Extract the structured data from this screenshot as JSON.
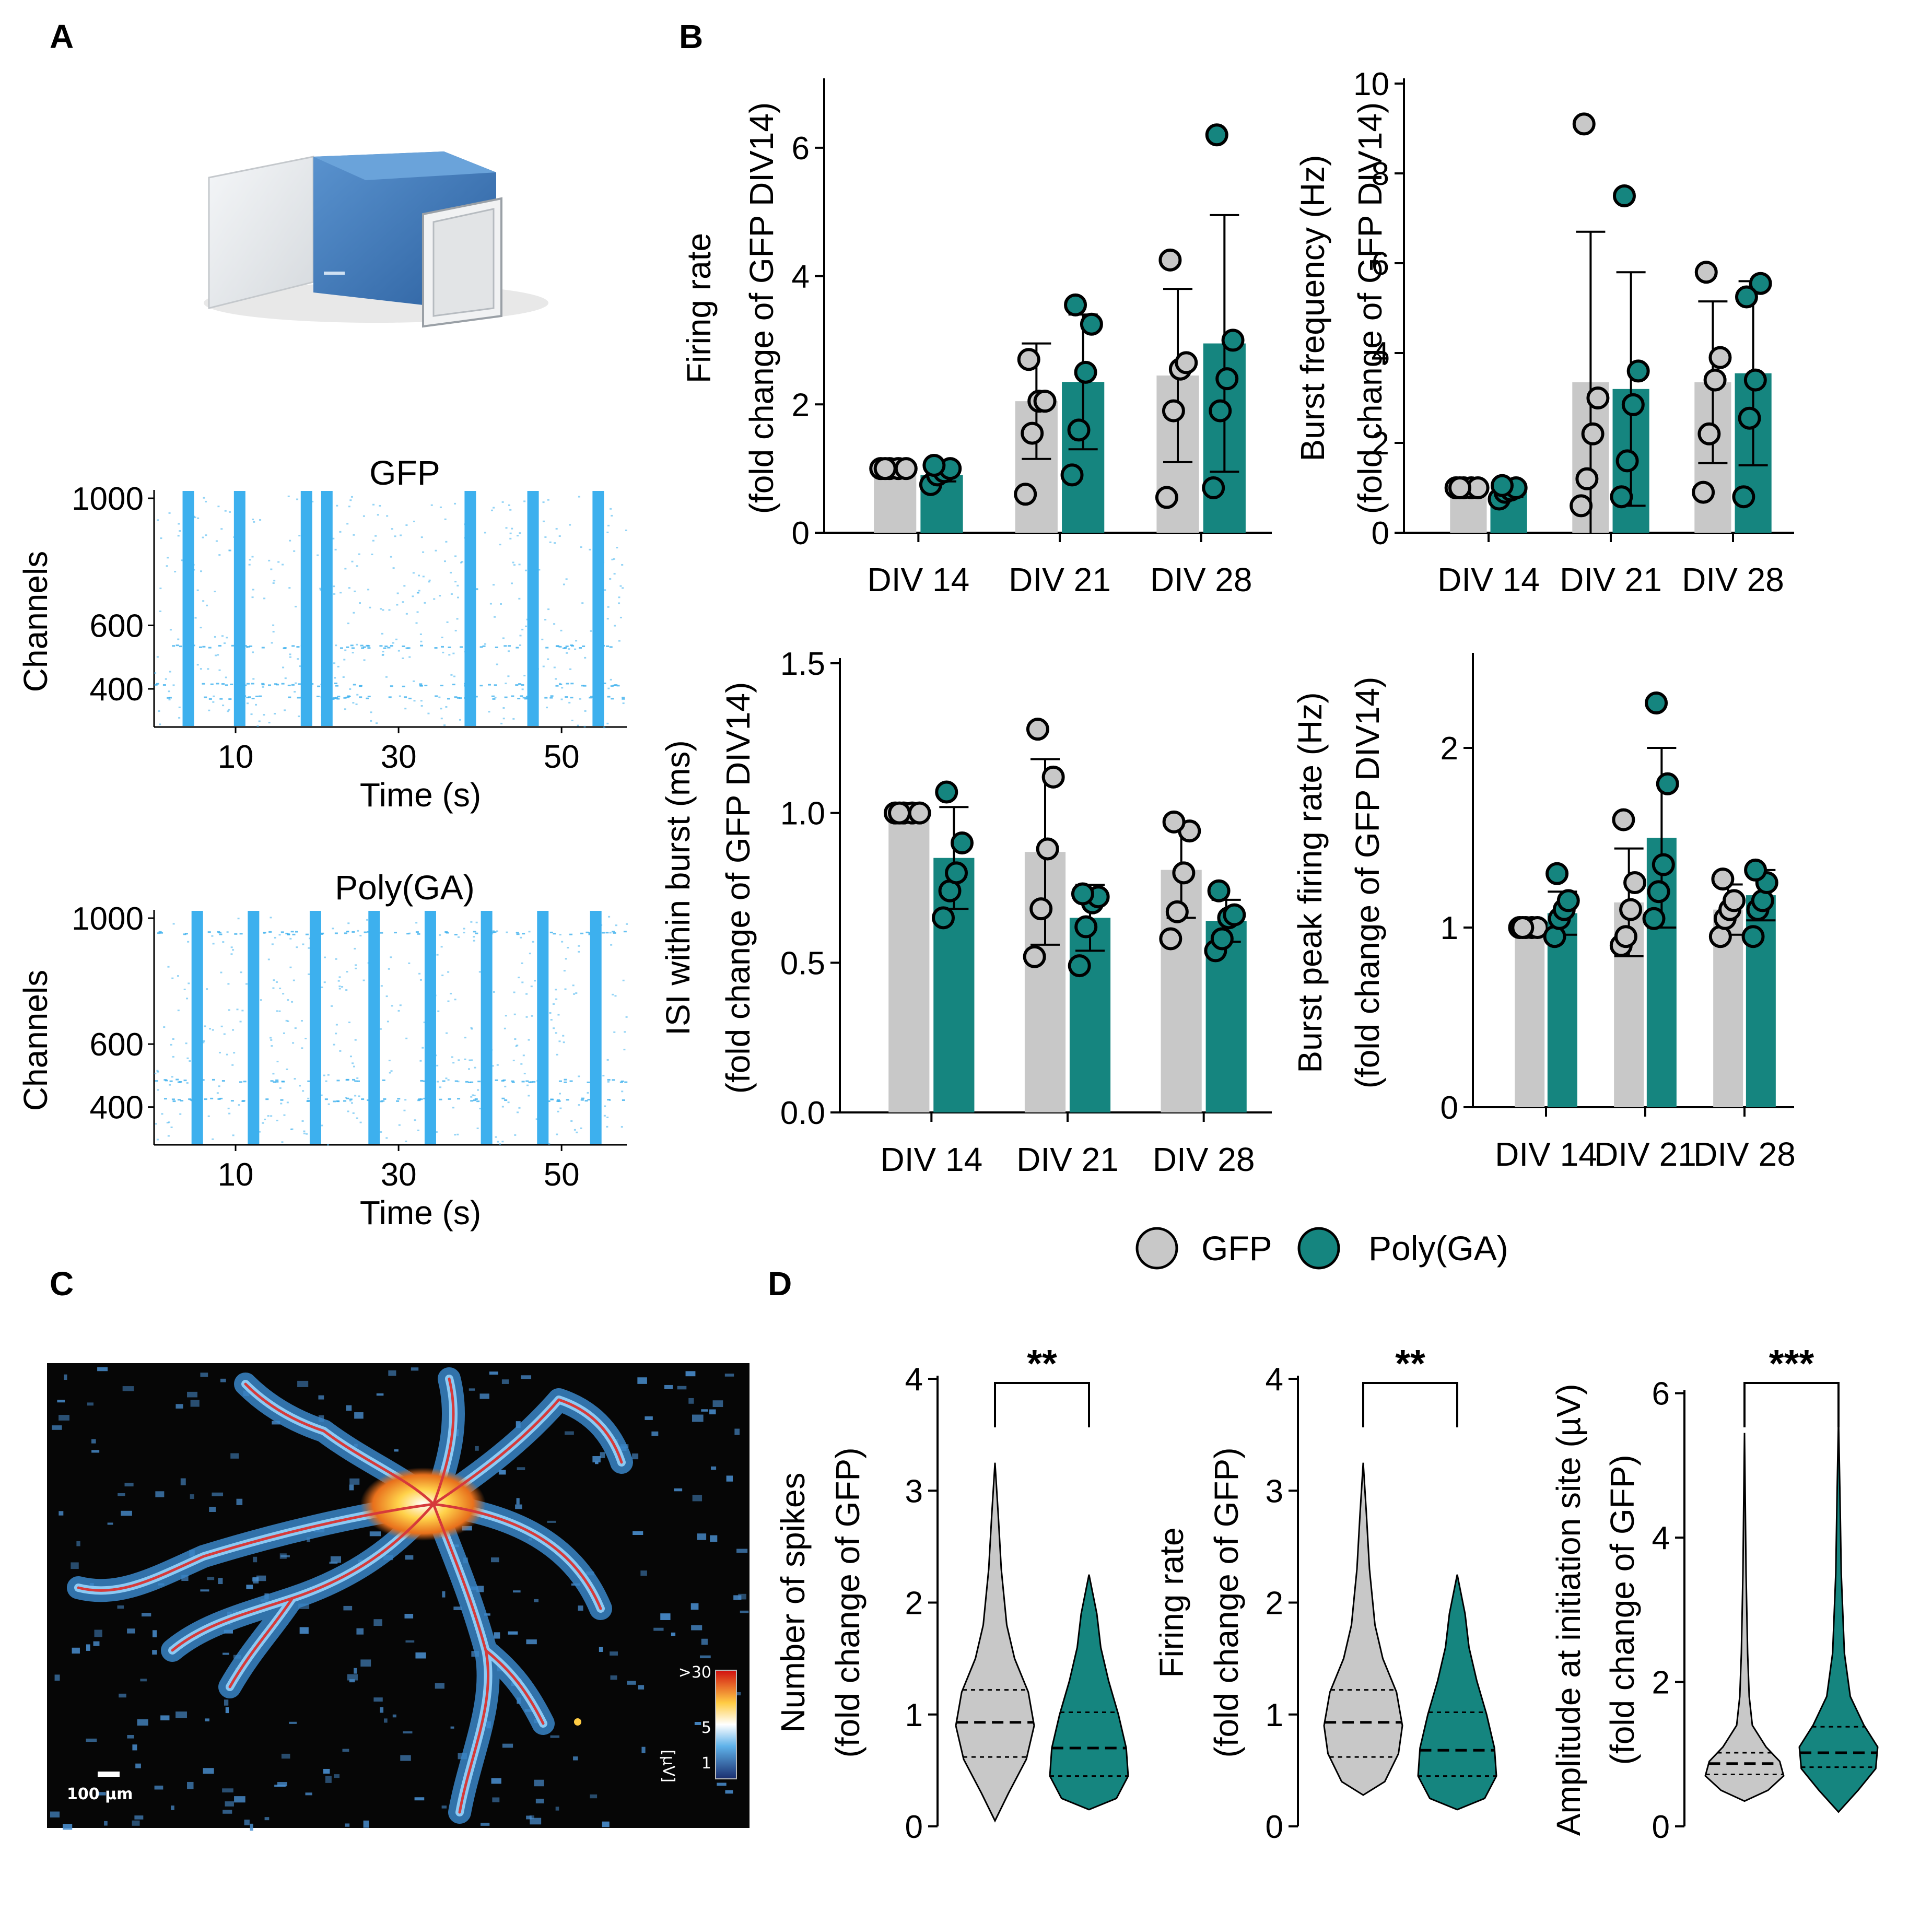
{
  "panel_letters": {
    "a": "A",
    "b": "B",
    "c": "C",
    "d": "D"
  },
  "colors": {
    "gfp": "#c8c8c8",
    "polyga": "#15857f",
    "raster": "#3db0ee",
    "trace": "#d63a3a"
  },
  "legend": {
    "gfp": "GFP",
    "polyga": "Poly(GA)"
  },
  "panel_a": {
    "device_label": "MaxOne MEA device",
    "rasters": [
      {
        "title": "GFP",
        "ylabel": "Channels",
        "xlabel": "Time (s)",
        "yticks": [
          "1000",
          "600",
          "400"
        ],
        "xticks": [
          "10",
          "30",
          "50"
        ],
        "bursts": [
          4.2,
          10.5,
          18.7,
          21.2,
          38.8,
          46.5,
          54.5
        ]
      },
      {
        "title": "Poly(GA)",
        "ylabel": "Channels",
        "xlabel": "Time (s)",
        "yticks": [
          "1000",
          "600",
          "400"
        ],
        "xticks": [
          "10",
          "30",
          "50"
        ],
        "bursts": [
          5.3,
          12.2,
          19.8,
          27.0,
          33.9,
          40.8,
          47.7,
          54.2
        ]
      }
    ]
  },
  "chart_data": [
    {
      "id": "firing_rate",
      "type": "bar",
      "ylabel": [
        "Firing rate",
        "(fold change of GFP DIV14)"
      ],
      "categories": [
        "DIV 14",
        "DIV 21",
        "DIV 28"
      ],
      "ylim": [
        0,
        7
      ],
      "yticks": [
        0,
        2,
        4,
        6
      ],
      "ytick_labels": [
        "0",
        "2",
        "4",
        "6"
      ],
      "series": [
        {
          "name": "GFP",
          "values": [
            1.0,
            2.05,
            2.45
          ],
          "sd": [
            0.0,
            0.9,
            1.35
          ],
          "points": [
            [
              1,
              1,
              1,
              1,
              1
            ],
            [
              0.6,
              1.55,
              2.05,
              2.05,
              2.7
            ],
            [
              0.55,
              1.9,
              2.55,
              2.65,
              4.25
            ]
          ]
        },
        {
          "name": "Poly(GA)",
          "values": [
            0.9,
            2.35,
            2.95
          ],
          "sd": [
            0.1,
            1.05,
            2.0
          ],
          "points": [
            [
              0.75,
              0.9,
              0.95,
              1.0,
              1.05
            ],
            [
              0.9,
              1.6,
              2.5,
              3.25,
              3.55
            ],
            [
              0.7,
              1.9,
              2.4,
              3.0,
              6.2
            ]
          ]
        }
      ]
    },
    {
      "id": "burst_frequency",
      "type": "bar",
      "ylabel": [
        "Burst frequency (Hz)",
        "(fold change of GFP DIV14)"
      ],
      "categories": [
        "DIV 14",
        "DIV 21",
        "DIV 28"
      ],
      "ylim": [
        0,
        10
      ],
      "yticks": [
        0,
        2,
        4,
        6,
        8,
        10
      ],
      "ytick_labels": [
        "0",
        "2",
        "4",
        "6",
        "8",
        "10"
      ],
      "series": [
        {
          "name": "GFP",
          "values": [
            1.0,
            3.35,
            3.35
          ],
          "sd": [
            0.0,
            3.35,
            1.8
          ],
          "points": [
            [
              1,
              1,
              1,
              1,
              1
            ],
            [
              0.6,
              1.2,
              2.2,
              3.0,
              9.1
            ],
            [
              0.9,
              2.2,
              3.4,
              3.9,
              5.8
            ]
          ]
        },
        {
          "name": "Poly(GA)",
          "values": [
            0.9,
            3.2,
            3.55
          ],
          "sd": [
            0.1,
            2.6,
            2.05
          ],
          "points": [
            [
              0.75,
              0.9,
              0.95,
              1.0,
              1.05
            ],
            [
              0.8,
              1.6,
              2.85,
              3.6,
              7.5
            ],
            [
              0.8,
              2.55,
              3.4,
              5.55,
              5.25
            ]
          ]
        }
      ]
    },
    {
      "id": "isi_within_burst",
      "type": "bar",
      "ylabel": [
        "ISI within burst (ms)",
        "(fold change of GFP DIV14)"
      ],
      "categories": [
        "DIV 14",
        "DIV 21",
        "DIV 28"
      ],
      "ylim": [
        0,
        1.5
      ],
      "yticks": [
        0,
        0.5,
        1.0,
        1.5
      ],
      "ytick_labels": [
        "0.0",
        "0.5",
        "1.0",
        "1.5"
      ],
      "series": [
        {
          "name": "GFP",
          "values": [
            1.0,
            0.87,
            0.81
          ],
          "sd": [
            0.0,
            0.31,
            0.16
          ],
          "points": [
            [
              1,
              1,
              1,
              1,
              1
            ],
            [
              0.52,
              0.68,
              0.88,
              1.12,
              1.28
            ],
            [
              0.58,
              0.67,
              0.8,
              0.94,
              0.97
            ]
          ]
        },
        {
          "name": "Poly(GA)",
          "values": [
            0.85,
            0.65,
            0.64
          ],
          "sd": [
            0.17,
            0.11,
            0.07
          ],
          "points": [
            [
              0.65,
              0.74,
              0.8,
              0.9,
              1.07
            ],
            [
              0.49,
              0.62,
              0.7,
              0.72,
              0.73
            ],
            [
              0.54,
              0.58,
              0.65,
              0.66,
              0.74
            ]
          ]
        }
      ]
    },
    {
      "id": "burst_peak_firing_rate",
      "type": "bar",
      "ylabel": [
        "Burst peak firing rate (Hz)",
        "(fold change of GFP DIV14)"
      ],
      "categories": [
        "DIV 14",
        "DIV 21",
        "DIV 28"
      ],
      "ylim": [
        0,
        2.5
      ],
      "yticks": [
        0,
        1,
        2
      ],
      "ytick_labels": [
        "0",
        "1",
        "2"
      ],
      "series": [
        {
          "name": "GFP",
          "values": [
            1.0,
            1.14,
            1.1
          ],
          "sd": [
            0.0,
            0.3,
            0.14
          ],
          "points": [
            [
              1,
              1,
              1,
              1,
              1
            ],
            [
              0.9,
              0.95,
              1.1,
              1.25,
              1.6
            ],
            [
              0.95,
              1.05,
              1.1,
              1.15,
              1.27
            ]
          ]
        },
        {
          "name": "Poly(GA)",
          "values": [
            1.08,
            1.5,
            1.18
          ],
          "sd": [
            0.12,
            0.5,
            0.14
          ],
          "points": [
            [
              0.95,
              1.05,
              1.1,
              1.15,
              1.3
            ],
            [
              1.05,
              1.2,
              1.35,
              1.8,
              2.25
            ],
            [
              0.95,
              1.1,
              1.15,
              1.25,
              1.32
            ]
          ]
        }
      ]
    },
    {
      "id": "number_of_spikes",
      "type": "violin",
      "ylabel": [
        "Number of spikes",
        "(fold change of GFP)"
      ],
      "ylim": [
        0,
        4
      ],
      "yticks": [
        0,
        1,
        2,
        3,
        4
      ],
      "ytick_labels": [
        "0",
        "1",
        "2",
        "3",
        "4"
      ],
      "significance": "**",
      "series": [
        {
          "name": "GFP",
          "min": 0.05,
          "max": 3.25,
          "q1": 0.62,
          "median": 0.93,
          "q3": 1.22,
          "profile": [
            [
              0.05,
              0.0
            ],
            [
              0.3,
              0.35
            ],
            [
              0.6,
              0.8
            ],
            [
              0.9,
              1.0
            ],
            [
              1.2,
              0.85
            ],
            [
              1.5,
              0.5
            ],
            [
              1.8,
              0.3
            ],
            [
              2.3,
              0.16
            ],
            [
              2.8,
              0.08
            ],
            [
              3.25,
              0.0
            ]
          ]
        },
        {
          "name": "Poly(GA)",
          "min": 0.15,
          "max": 2.25,
          "q1": 0.45,
          "median": 0.7,
          "q3": 1.02,
          "profile": [
            [
              0.15,
              0.0
            ],
            [
              0.25,
              0.7
            ],
            [
              0.45,
              1.0
            ],
            [
              0.7,
              0.95
            ],
            [
              1.0,
              0.75
            ],
            [
              1.3,
              0.5
            ],
            [
              1.6,
              0.3
            ],
            [
              1.9,
              0.2
            ],
            [
              2.25,
              0.0
            ]
          ]
        }
      ]
    },
    {
      "id": "firing_rate_single",
      "type": "violin",
      "ylabel": [
        "Firing rate",
        "(fold change of GFP)"
      ],
      "ylim": [
        0,
        4
      ],
      "yticks": [
        0,
        1,
        2,
        3,
        4
      ],
      "ytick_labels": [
        "0",
        "1",
        "2",
        "3",
        "4"
      ],
      "significance": "**",
      "series": [
        {
          "name": "GFP",
          "min": 0.28,
          "max": 3.25,
          "q1": 0.62,
          "median": 0.93,
          "q3": 1.22,
          "profile": [
            [
              0.28,
              0.0
            ],
            [
              0.4,
              0.55
            ],
            [
              0.65,
              0.9
            ],
            [
              0.9,
              1.0
            ],
            [
              1.2,
              0.85
            ],
            [
              1.5,
              0.5
            ],
            [
              1.8,
              0.3
            ],
            [
              2.3,
              0.16
            ],
            [
              2.8,
              0.08
            ],
            [
              3.25,
              0.0
            ]
          ]
        },
        {
          "name": "Poly(GA)",
          "min": 0.15,
          "max": 2.25,
          "q1": 0.45,
          "median": 0.68,
          "q3": 1.02,
          "profile": [
            [
              0.15,
              0.0
            ],
            [
              0.25,
              0.7
            ],
            [
              0.45,
              1.0
            ],
            [
              0.7,
              0.95
            ],
            [
              1.0,
              0.75
            ],
            [
              1.3,
              0.5
            ],
            [
              1.6,
              0.3
            ],
            [
              1.9,
              0.2
            ],
            [
              2.25,
              0.0
            ]
          ]
        }
      ]
    },
    {
      "id": "amplitude_initiation_site",
      "type": "violin",
      "ylabel": [
        "Amplitude at initiation site (µV)",
        "(fold change of GFP)"
      ],
      "ylim": [
        0,
        6.2
      ],
      "yticks": [
        0,
        2,
        4,
        6
      ],
      "ytick_labels": [
        "0",
        "2",
        "4",
        "6"
      ],
      "significance": "***",
      "series": [
        {
          "name": "GFP",
          "min": 0.35,
          "max": 5.45,
          "q1": 0.72,
          "median": 0.87,
          "q3": 1.02,
          "profile": [
            [
              0.35,
              0.0
            ],
            [
              0.5,
              0.6
            ],
            [
              0.7,
              1.0
            ],
            [
              0.9,
              0.9
            ],
            [
              1.1,
              0.55
            ],
            [
              1.4,
              0.2
            ],
            [
              1.8,
              0.12
            ],
            [
              2.4,
              0.08
            ],
            [
              3.5,
              0.04
            ],
            [
              5.45,
              0.0
            ]
          ]
        },
        {
          "name": "Poly(GA)",
          "min": 0.2,
          "max": 5.65,
          "q1": 0.82,
          "median": 1.02,
          "q3": 1.38,
          "profile": [
            [
              0.2,
              0.0
            ],
            [
              0.5,
              0.5
            ],
            [
              0.8,
              0.95
            ],
            [
              1.1,
              1.0
            ],
            [
              1.4,
              0.65
            ],
            [
              1.8,
              0.3
            ],
            [
              2.4,
              0.15
            ],
            [
              3.5,
              0.07
            ],
            [
              4.5,
              0.04
            ],
            [
              5.65,
              0.0
            ]
          ]
        }
      ]
    }
  ],
  "panel_c": {
    "colorbar_labels": [
      ">30",
      "5",
      "1"
    ],
    "unit_label": "[µV]",
    "scale_label": "100 µm"
  }
}
